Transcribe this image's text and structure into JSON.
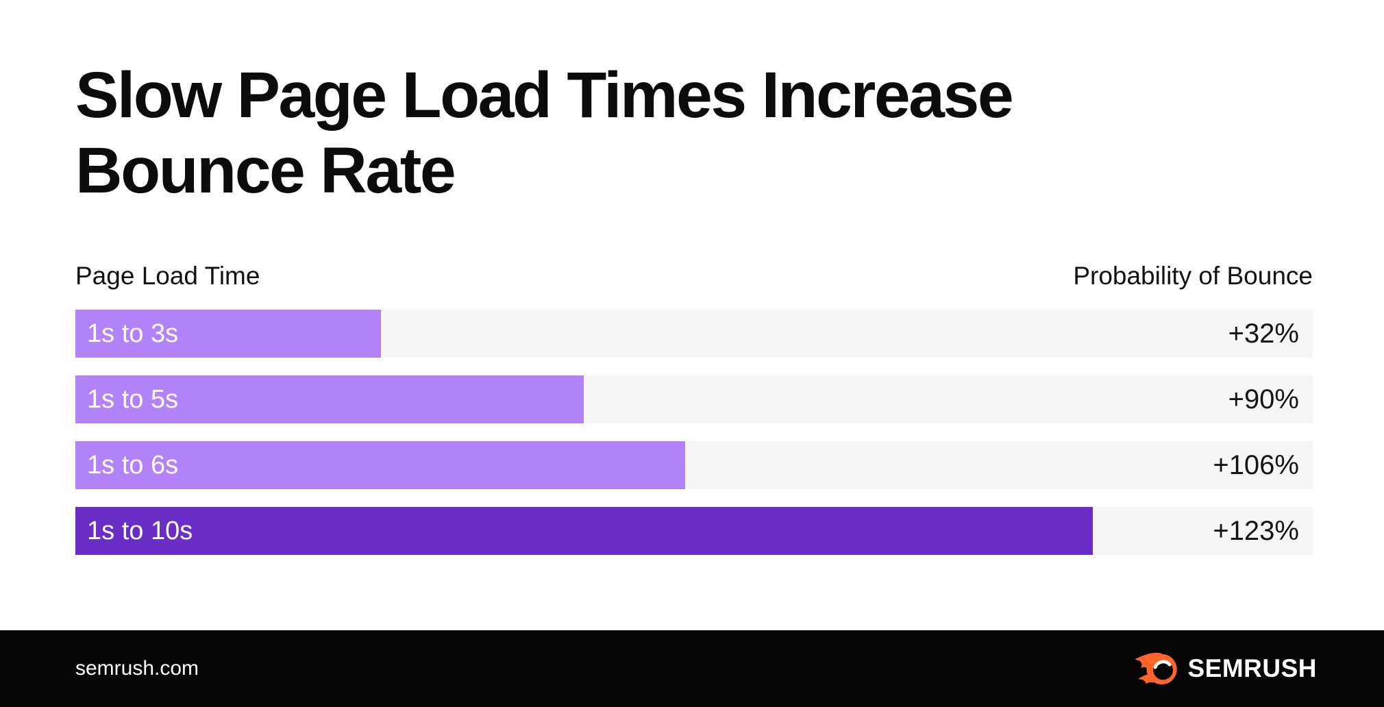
{
  "title": {
    "line1": "Slow Page Load Times Increase",
    "line2": "Bounce Rate"
  },
  "header": {
    "left_label": "Page Load Time",
    "right_label": "Probability of Bounce"
  },
  "rows": [
    {
      "label": "1s to 3s",
      "value": "+32%",
      "width_pct": 24.7,
      "color": "#B182F8"
    },
    {
      "label": "1s to 5s",
      "value": "+90%",
      "width_pct": 41.1,
      "color": "#B182F8"
    },
    {
      "label": "1s to 6s",
      "value": "+106%",
      "width_pct": 49.3,
      "color": "#B182F8"
    },
    {
      "label": "1s to 10s",
      "value": "+123%",
      "width_pct": 82.2,
      "color": "#6A2EC6"
    }
  ],
  "chart_data": {
    "type": "bar",
    "orientation": "horizontal",
    "title": "Slow Page Load Times Increase Bounce Rate",
    "categories": [
      "1s to 3s",
      "1s to 5s",
      "1s to 6s",
      "1s to 10s"
    ],
    "values": [
      32,
      90,
      106,
      123
    ],
    "value_labels": [
      "+32%",
      "+90%",
      "+106%",
      "+123%"
    ],
    "xlabel": "Probability of Bounce",
    "ylabel": "Page Load Time",
    "bar_length_note": "bar lengths drawn proportional to seconds (3,5,6,10), not to percent values",
    "bar_colors": [
      "#B182F8",
      "#B182F8",
      "#B182F8",
      "#6A2EC6"
    ],
    "track_color": "#F5F5F5",
    "grid": false,
    "legend": false
  },
  "footer": {
    "site": "semrush.com",
    "brand": "SEMRUSH",
    "brand_orange": "#FF642D",
    "bg": "#060606"
  }
}
